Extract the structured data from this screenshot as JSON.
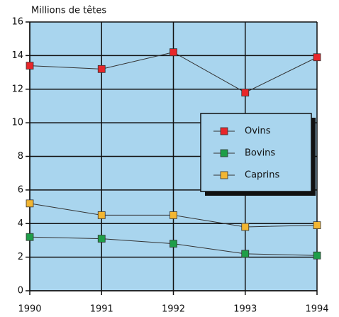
{
  "chart_data": {
    "type": "line",
    "y_axis_label": "Millions de têtes",
    "x": [
      1990,
      1991,
      1992,
      1993,
      1994
    ],
    "xlim": [
      1990,
      1994
    ],
    "xticks": [
      1990,
      1991,
      1992,
      1993,
      1994
    ],
    "ylim": [
      0,
      16
    ],
    "yticks": [
      0,
      2,
      4,
      6,
      8,
      10,
      12,
      14,
      16
    ],
    "grid": true,
    "legend": "center right",
    "series": [
      {
        "name": "Ovins",
        "color": "#e8262a",
        "values": [
          13.4,
          13.2,
          14.2,
          11.8,
          13.9
        ]
      },
      {
        "name": "Bovins",
        "color": "#1f9e48",
        "values": [
          3.2,
          3.1,
          2.8,
          2.2,
          2.1
        ]
      },
      {
        "name": "Caprins",
        "color": "#f2b632",
        "values": [
          5.2,
          4.5,
          4.5,
          3.8,
          3.9
        ]
      }
    ]
  }
}
